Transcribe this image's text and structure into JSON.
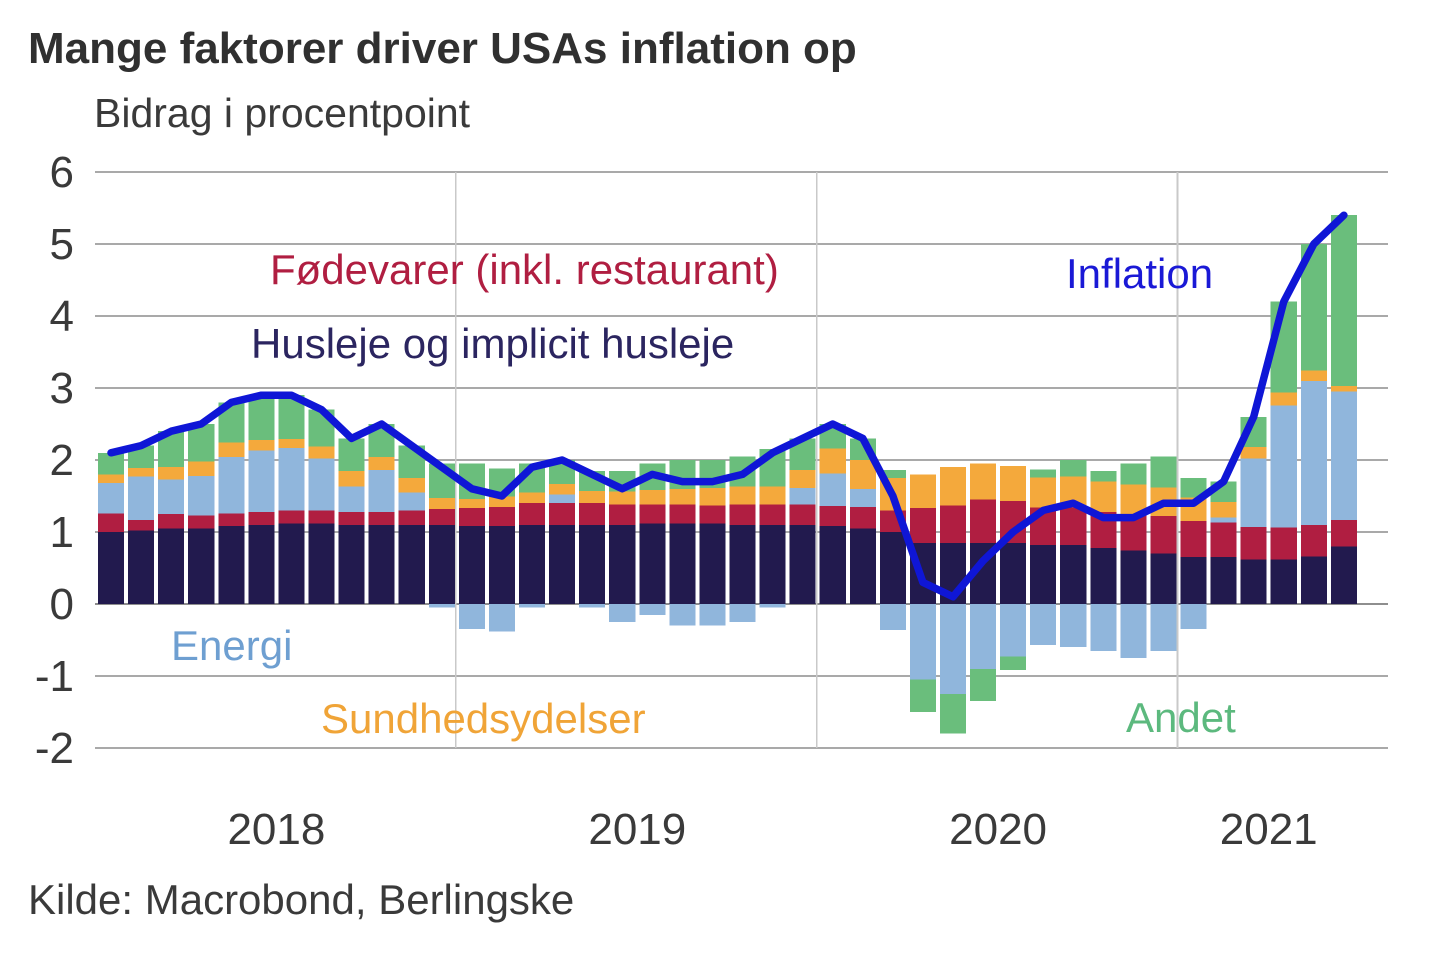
{
  "chart_data": {
    "type": "bar",
    "subtype": "stacked-monthly-bars-with-line-overlay",
    "title": "Mange faktorer driver USAs inflation op",
    "subtitle": "Bidrag i procentpoint",
    "source": "Kilde: Macrobond, Berlingske",
    "ylim": [
      -2,
      6
    ],
    "yticks": [
      6,
      5,
      4,
      3,
      2,
      1,
      0,
      -1,
      -2
    ],
    "grid": {
      "horizontal": true,
      "year_boundaries": true,
      "legend": "labels annotated inside plot"
    },
    "months": [
      "2018-01",
      "2018-02",
      "2018-03",
      "2018-04",
      "2018-05",
      "2018-06",
      "2018-07",
      "2018-08",
      "2018-09",
      "2018-10",
      "2018-11",
      "2018-12",
      "2019-01",
      "2019-02",
      "2019-03",
      "2019-04",
      "2019-05",
      "2019-06",
      "2019-07",
      "2019-08",
      "2019-09",
      "2019-10",
      "2019-11",
      "2019-12",
      "2020-01",
      "2020-02",
      "2020-03",
      "2020-04",
      "2020-05",
      "2020-06",
      "2020-07",
      "2020-08",
      "2020-09",
      "2020-10",
      "2020-11",
      "2020-12",
      "2021-01",
      "2021-02",
      "2021-03",
      "2021-04",
      "2021-05",
      "2021-06"
    ],
    "xticks": [
      {
        "label": "2018",
        "month_index_center": 6
      },
      {
        "label": "2019",
        "month_index_center": 18
      },
      {
        "label": "2020",
        "month_index_center": 30
      },
      {
        "label": "2021",
        "month_index_center": 39
      }
    ],
    "series": [
      {
        "key": "husleje",
        "name": "Husleje og implicit husleje",
        "color": "#221A4E",
        "label_color": "#2B2560",
        "values": [
          1.0,
          1.02,
          1.05,
          1.05,
          1.08,
          1.1,
          1.12,
          1.12,
          1.1,
          1.1,
          1.1,
          1.1,
          1.08,
          1.08,
          1.1,
          1.1,
          1.1,
          1.1,
          1.12,
          1.12,
          1.12,
          1.1,
          1.1,
          1.1,
          1.08,
          1.05,
          1.0,
          0.85,
          0.85,
          0.85,
          0.85,
          0.82,
          0.82,
          0.78,
          0.74,
          0.7,
          0.65,
          0.65,
          0.62,
          0.62,
          0.66,
          0.8
        ]
      },
      {
        "key": "fodevarer",
        "name": "Fødevarer (inkl. restaurant)",
        "color": "#B01E41",
        "label_color": "#B01E41",
        "values": [
          0.26,
          0.15,
          0.2,
          0.18,
          0.18,
          0.18,
          0.18,
          0.18,
          0.18,
          0.18,
          0.2,
          0.22,
          0.25,
          0.27,
          0.3,
          0.3,
          0.3,
          0.28,
          0.26,
          0.26,
          0.25,
          0.28,
          0.28,
          0.28,
          0.28,
          0.3,
          0.3,
          0.48,
          0.52,
          0.6,
          0.58,
          0.52,
          0.52,
          0.5,
          0.5,
          0.52,
          0.5,
          0.48,
          0.45,
          0.44,
          0.44,
          0.37
        ]
      },
      {
        "key": "energi",
        "name": "Energi",
        "color": "#90B6DC",
        "label_color": "#6E9FD1",
        "values": [
          0.42,
          0.6,
          0.48,
          0.55,
          0.78,
          0.85,
          0.87,
          0.72,
          0.35,
          0.58,
          0.25,
          -0.05,
          -0.35,
          -0.38,
          -0.05,
          0.12,
          -0.05,
          -0.25,
          -0.15,
          -0.3,
          -0.3,
          -0.25,
          -0.05,
          0.23,
          0.45,
          0.25,
          -0.36,
          -1.05,
          -1.25,
          -0.9,
          -0.73,
          -0.57,
          -0.6,
          -0.65,
          -0.75,
          -0.65,
          -0.35,
          0.07,
          0.95,
          1.7,
          2.0,
          1.78
        ]
      },
      {
        "key": "sundhedsydelser",
        "name": "Sundhedsydelser",
        "color": "#F4A93C",
        "label_color": "#F0A437",
        "values": [
          0.12,
          0.12,
          0.17,
          0.2,
          0.2,
          0.15,
          0.12,
          0.17,
          0.22,
          0.18,
          0.2,
          0.15,
          0.13,
          0.14,
          0.15,
          0.15,
          0.17,
          0.18,
          0.2,
          0.22,
          0.24,
          0.25,
          0.25,
          0.25,
          0.35,
          0.4,
          0.45,
          0.47,
          0.53,
          0.5,
          0.49,
          0.42,
          0.43,
          0.42,
          0.42,
          0.4,
          0.33,
          0.22,
          0.16,
          0.18,
          0.14,
          0.08
        ]
      },
      {
        "key": "andet",
        "name": "Andet",
        "color": "#6ABE7C",
        "label_color": "#5CB97E",
        "values": [
          0.3,
          0.31,
          0.5,
          0.52,
          0.56,
          0.62,
          0.61,
          0.51,
          0.45,
          0.46,
          0.45,
          0.48,
          0.49,
          0.39,
          0.4,
          0.33,
          0.28,
          0.29,
          0.37,
          0.4,
          0.39,
          0.42,
          0.52,
          0.44,
          0.34,
          0.3,
          0.11,
          -0.45,
          -0.55,
          -0.45,
          -0.19,
          0.11,
          0.23,
          0.15,
          0.29,
          0.43,
          0.27,
          0.28,
          0.42,
          1.26,
          1.76,
          2.37
        ]
      }
    ],
    "line": {
      "key": "inflation",
      "name": "Inflation",
      "color": "#0F16D6",
      "label_color": "#1A19D6",
      "values": [
        2.1,
        2.2,
        2.4,
        2.5,
        2.8,
        2.9,
        2.9,
        2.7,
        2.3,
        2.5,
        2.2,
        1.9,
        1.6,
        1.5,
        1.9,
        2.0,
        1.8,
        1.6,
        1.8,
        1.7,
        1.7,
        1.8,
        2.1,
        2.3,
        2.5,
        2.3,
        1.5,
        0.3,
        0.1,
        0.6,
        1.0,
        1.3,
        1.4,
        1.2,
        1.2,
        1.4,
        1.4,
        1.7,
        2.6,
        4.2,
        5.0,
        5.4
      ]
    },
    "style_colors": {
      "gridline": "#A9A9A9",
      "zero_line": "#8E8E8E",
      "year_line": "#C9C9C9",
      "axis_text": "#3A3A3A"
    }
  }
}
